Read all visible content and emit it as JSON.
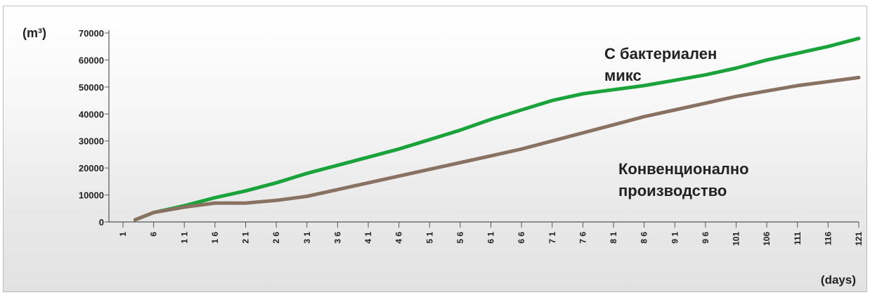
{
  "chart_data": {
    "type": "line",
    "title": "",
    "ylabel": "(m³)",
    "xlabel": "(days)",
    "ylim": [
      0,
      70000
    ],
    "xlim": [
      1,
      121
    ],
    "yticks": [
      0,
      10000,
      20000,
      30000,
      40000,
      50000,
      60000,
      70000
    ],
    "ytick_labels": [
      "0",
      "10000",
      "20000",
      "30000",
      "40000",
      "50000",
      "60000",
      "70000"
    ],
    "xticks": [
      1,
      6,
      11,
      16,
      21,
      26,
      31,
      36,
      41,
      46,
      51,
      56,
      61,
      66,
      71,
      76,
      81,
      86,
      91,
      96,
      101,
      106,
      111,
      116,
      121
    ],
    "xtick_labels": [
      "1",
      "6",
      "1 1",
      "1 6",
      "2 1",
      "2 6",
      "3 1",
      "3 6",
      "4 1",
      "4 6",
      "5 1",
      "5 6",
      "6 1",
      "6 6",
      "7 1",
      "7 6",
      "8 1",
      "8 6",
      "9 1",
      "9 6",
      "101",
      "106",
      "111",
      "116",
      "121"
    ],
    "grid": false,
    "series": [
      {
        "name": "С бактериален микс",
        "color": "#1aa33b",
        "x": [
          3,
          6,
          11,
          16,
          21,
          26,
          31,
          36,
          41,
          46,
          51,
          56,
          61,
          66,
          71,
          76,
          81,
          86,
          91,
          96,
          101,
          106,
          111,
          116,
          121
        ],
        "y": [
          800,
          3500,
          6000,
          9000,
          11500,
          14500,
          18000,
          21000,
          24000,
          27000,
          30500,
          34000,
          38000,
          41500,
          45000,
          47500,
          49000,
          50500,
          52500,
          54500,
          57000,
          60000,
          62500,
          65000,
          68000
        ]
      },
      {
        "name": "Конвенционално производство",
        "color": "#8a7263",
        "x": [
          3,
          6,
          11,
          16,
          21,
          26,
          31,
          36,
          41,
          46,
          51,
          56,
          61,
          66,
          71,
          76,
          81,
          86,
          91,
          96,
          101,
          106,
          111,
          116,
          121
        ],
        "y": [
          800,
          3500,
          5500,
          7000,
          7000,
          8000,
          9500,
          12000,
          14500,
          17000,
          19500,
          22000,
          24500,
          27000,
          30000,
          33000,
          36000,
          39000,
          41500,
          44000,
          46500,
          48500,
          50500,
          52000,
          53500
        ]
      }
    ],
    "annotations": [
      {
        "series": 0,
        "lines": [
          "С бактериален",
          "микс"
        ]
      },
      {
        "series": 1,
        "lines": [
          "Конвенционално",
          "производство"
        ]
      }
    ]
  }
}
